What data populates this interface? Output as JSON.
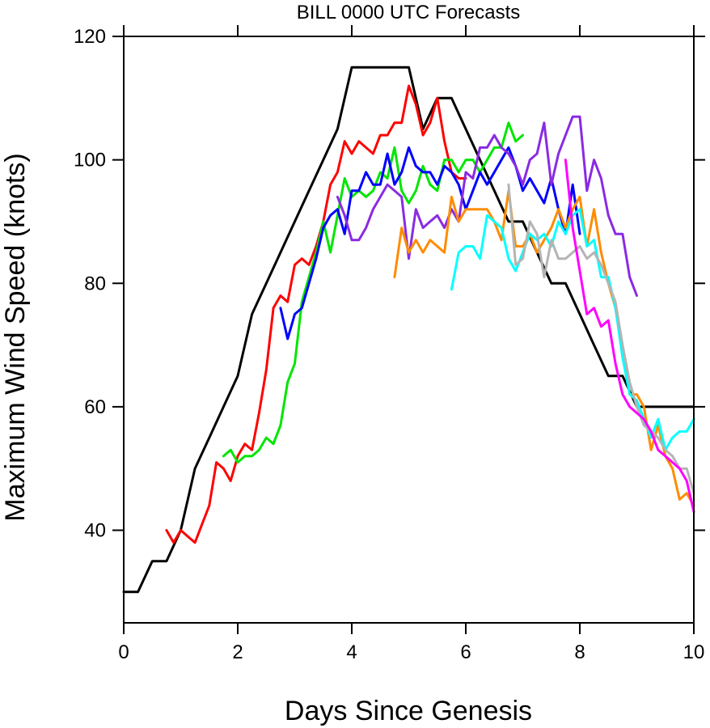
{
  "chart_data": {
    "type": "line",
    "title": "BILL 0000 UTC Forecasts",
    "xlabel": "Days Since Genesis",
    "ylabel": "Maximum Wind Speed (knots)",
    "xlim": [
      0,
      10
    ],
    "ylim": [
      25,
      120
    ],
    "xticks": [
      0,
      2,
      4,
      6,
      8,
      10
    ],
    "yticks": [
      40,
      60,
      80,
      100,
      120
    ],
    "xtick_labels": [
      "0",
      "2",
      "4",
      "6",
      "8",
      "10"
    ],
    "ytick_labels": [
      "40",
      "60",
      "80",
      "100",
      "120"
    ],
    "grid": false,
    "legend": "none",
    "series": [
      {
        "color": "#000000",
        "x": [
          0,
          0.25,
          0.5,
          0.75,
          1.0,
          1.25,
          1.5,
          1.75,
          2.0,
          2.25,
          2.5,
          2.75,
          3.0,
          3.25,
          3.5,
          3.75,
          4.0,
          4.25,
          4.5,
          4.75,
          5.0,
          5.25,
          5.5,
          5.75,
          6.0,
          6.25,
          6.5,
          6.75,
          7.0,
          7.25,
          7.5,
          7.75,
          8.0,
          8.25,
          8.5,
          8.75,
          9.0,
          9.25,
          9.5,
          9.75,
          10.0
        ],
        "y": [
          30,
          30,
          35,
          35,
          40,
          50,
          55,
          60,
          65,
          75,
          80,
          85,
          90,
          95,
          100,
          105,
          115,
          115,
          115,
          115,
          115,
          105,
          110,
          110,
          105,
          100,
          95,
          90,
          90,
          85,
          80,
          80,
          75,
          70,
          65,
          65,
          60,
          60,
          60,
          60,
          60
        ]
      },
      {
        "color": "#ff0000",
        "x": [
          0.75,
          0.875,
          1.0,
          1.125,
          1.25,
          1.375,
          1.5,
          1.625,
          1.75,
          1.875,
          2.0,
          2.125,
          2.25,
          2.375,
          2.5,
          2.625,
          2.75,
          2.875,
          3.0,
          3.125,
          3.25,
          3.375,
          3.5,
          3.625,
          3.75,
          3.875,
          4.0,
          4.125,
          4.25,
          4.375,
          4.5,
          4.625,
          4.75,
          4.875,
          5.0,
          5.125,
          5.25,
          5.375,
          5.5,
          5.625,
          5.75,
          5.875,
          6.0
        ],
        "y": [
          40,
          38,
          40,
          39,
          38,
          41,
          44,
          51,
          50,
          48,
          52,
          54,
          53,
          59,
          66,
          76,
          78,
          77,
          83,
          84,
          83,
          86,
          90,
          96,
          98,
          103,
          101,
          103,
          102,
          101,
          104,
          104,
          106,
          106,
          112,
          109,
          104,
          106,
          110,
          103,
          98,
          97,
          97
        ]
      },
      {
        "color": "#00e600",
        "x": [
          1.75,
          1.875,
          2.0,
          2.125,
          2.25,
          2.375,
          2.5,
          2.625,
          2.75,
          2.875,
          3.0,
          3.125,
          3.25,
          3.375,
          3.5,
          3.625,
          3.75,
          3.875,
          4.0,
          4.125,
          4.25,
          4.375,
          4.5,
          4.625,
          4.75,
          4.875,
          5.0,
          5.125,
          5.25,
          5.375,
          5.5,
          5.625,
          5.75,
          5.875,
          6.0,
          6.125,
          6.25,
          6.375,
          6.5,
          6.625,
          6.75,
          6.875,
          7.0
        ],
        "y": [
          52,
          53,
          51,
          52,
          52,
          53,
          55,
          54,
          57,
          64,
          67,
          77,
          81,
          85,
          90,
          85,
          91,
          97,
          94,
          95,
          94,
          95,
          98,
          97,
          102,
          95,
          93,
          95,
          99,
          96,
          95,
          100,
          100,
          98,
          100,
          100,
          98,
          100,
          102,
          102,
          106,
          103,
          104
        ]
      },
      {
        "color": "#0000ff",
        "x": [
          2.75,
          2.875,
          3.0,
          3.125,
          3.25,
          3.375,
          3.5,
          3.625,
          3.75,
          3.875,
          4.0,
          4.125,
          4.25,
          4.375,
          4.5,
          4.625,
          4.75,
          4.875,
          5.0,
          5.125,
          5.25,
          5.375,
          5.5,
          5.625,
          5.75,
          5.875,
          6.0,
          6.125,
          6.25,
          6.375,
          6.5,
          6.625,
          6.75,
          6.875,
          7.0,
          7.125,
          7.25,
          7.375,
          7.5,
          7.625,
          7.75,
          7.875,
          8.0
        ],
        "y": [
          76,
          71,
          75,
          76,
          80,
          84,
          89,
          91,
          92,
          88,
          95,
          95,
          98,
          96,
          96,
          101,
          96,
          98,
          102,
          99,
          98,
          98,
          96,
          99,
          98,
          96,
          92,
          95,
          98,
          96,
          98,
          100,
          102,
          99,
          95,
          97,
          95,
          93,
          97,
          92,
          88,
          96,
          88
        ]
      },
      {
        "color": "#8a2be2",
        "x": [
          3.75,
          3.875,
          4.0,
          4.125,
          4.25,
          4.375,
          4.5,
          4.625,
          4.75,
          4.875,
          5.0,
          5.125,
          5.25,
          5.375,
          5.5,
          5.625,
          5.75,
          5.875,
          6.0,
          6.125,
          6.25,
          6.375,
          6.5,
          6.625,
          6.75,
          6.875,
          7.0,
          7.125,
          7.25,
          7.375,
          7.5,
          7.625,
          7.75,
          7.875,
          8.0,
          8.125,
          8.25,
          8.375,
          8.5,
          8.625,
          8.75,
          8.875,
          9.0
        ],
        "y": [
          94,
          91,
          87,
          87,
          89,
          92,
          94,
          96,
          95,
          94,
          84,
          92,
          89,
          90,
          91,
          89,
          92,
          90,
          98,
          97,
          102,
          102,
          104,
          102,
          101,
          99,
          96,
          100,
          101,
          106,
          96,
          101,
          104,
          107,
          107,
          95,
          100,
          97,
          91,
          88,
          88,
          81,
          78
        ]
      },
      {
        "color": "#ff8c00",
        "x": [
          4.75,
          4.875,
          5.0,
          5.125,
          5.25,
          5.375,
          5.5,
          5.625,
          5.75,
          5.875,
          6.0,
          6.125,
          6.25,
          6.375,
          6.5,
          6.625,
          6.75,
          6.875,
          7.0,
          7.125,
          7.25,
          7.375,
          7.5,
          7.625,
          7.75,
          7.875,
          8.0,
          8.125,
          8.25,
          8.375,
          8.5,
          8.625,
          8.75,
          8.875,
          9.0,
          9.125,
          9.25,
          9.375,
          9.5,
          9.625,
          9.75,
          9.875,
          10.0
        ],
        "y": [
          81,
          89,
          85,
          87,
          85,
          87,
          86,
          85,
          94,
          90,
          92,
          92,
          92,
          92,
          90,
          87,
          95,
          86,
          86,
          88,
          85,
          87,
          89,
          92,
          89,
          92,
          94,
          86,
          92,
          85,
          80,
          76,
          69,
          62,
          62,
          60,
          53,
          57,
          52,
          50,
          45,
          46,
          44
        ]
      },
      {
        "color": "#00ffff",
        "x": [
          5.75,
          5.875,
          6.0,
          6.125,
          6.25,
          6.375,
          6.5,
          6.625,
          6.75,
          6.875,
          7.0,
          7.125,
          7.25,
          7.375,
          7.5,
          7.625,
          7.75,
          7.875,
          8.0,
          8.125,
          8.25,
          8.375,
          8.5,
          8.625,
          8.75,
          8.875,
          9.0,
          9.125,
          9.25,
          9.375,
          9.5,
          9.625,
          9.75,
          9.875,
          10.0
        ],
        "y": [
          79,
          85,
          86,
          86,
          84,
          91,
          90,
          89,
          84,
          82,
          85,
          88,
          87,
          88,
          86,
          90,
          88,
          91,
          92,
          86,
          87,
          81,
          81,
          76,
          68,
          62,
          61,
          58,
          55,
          58,
          53,
          55,
          56,
          56,
          58
        ]
      },
      {
        "color": "#b4b4b4",
        "x": [
          6.75,
          6.875,
          7.0,
          7.125,
          7.25,
          7.375,
          7.5,
          7.625,
          7.75,
          7.875,
          8.0,
          8.125,
          8.25,
          8.375,
          8.5,
          8.625,
          8.75,
          8.875,
          9.0,
          9.125,
          9.25,
          9.375,
          9.5,
          9.625,
          9.75,
          9.875,
          10.0
        ],
        "y": [
          96,
          83,
          84,
          90,
          88,
          81,
          87,
          84,
          84,
          85,
          86,
          84,
          85,
          83,
          80,
          77,
          70,
          64,
          60,
          57,
          56,
          55,
          53,
          52,
          50,
          50,
          46
        ]
      },
      {
        "color": "#ff00ff",
        "x": [
          7.75,
          7.875,
          8.0,
          8.125,
          8.25,
          8.375,
          8.5,
          8.625,
          8.75,
          8.875,
          9.0,
          9.125,
          9.25,
          9.375,
          9.5,
          9.625,
          9.75,
          9.875,
          10.0
        ],
        "y": [
          100,
          89,
          82,
          75,
          76,
          73,
          74,
          67,
          62,
          60,
          59,
          58,
          56,
          53,
          52,
          51,
          50,
          48,
          43
        ]
      }
    ]
  }
}
